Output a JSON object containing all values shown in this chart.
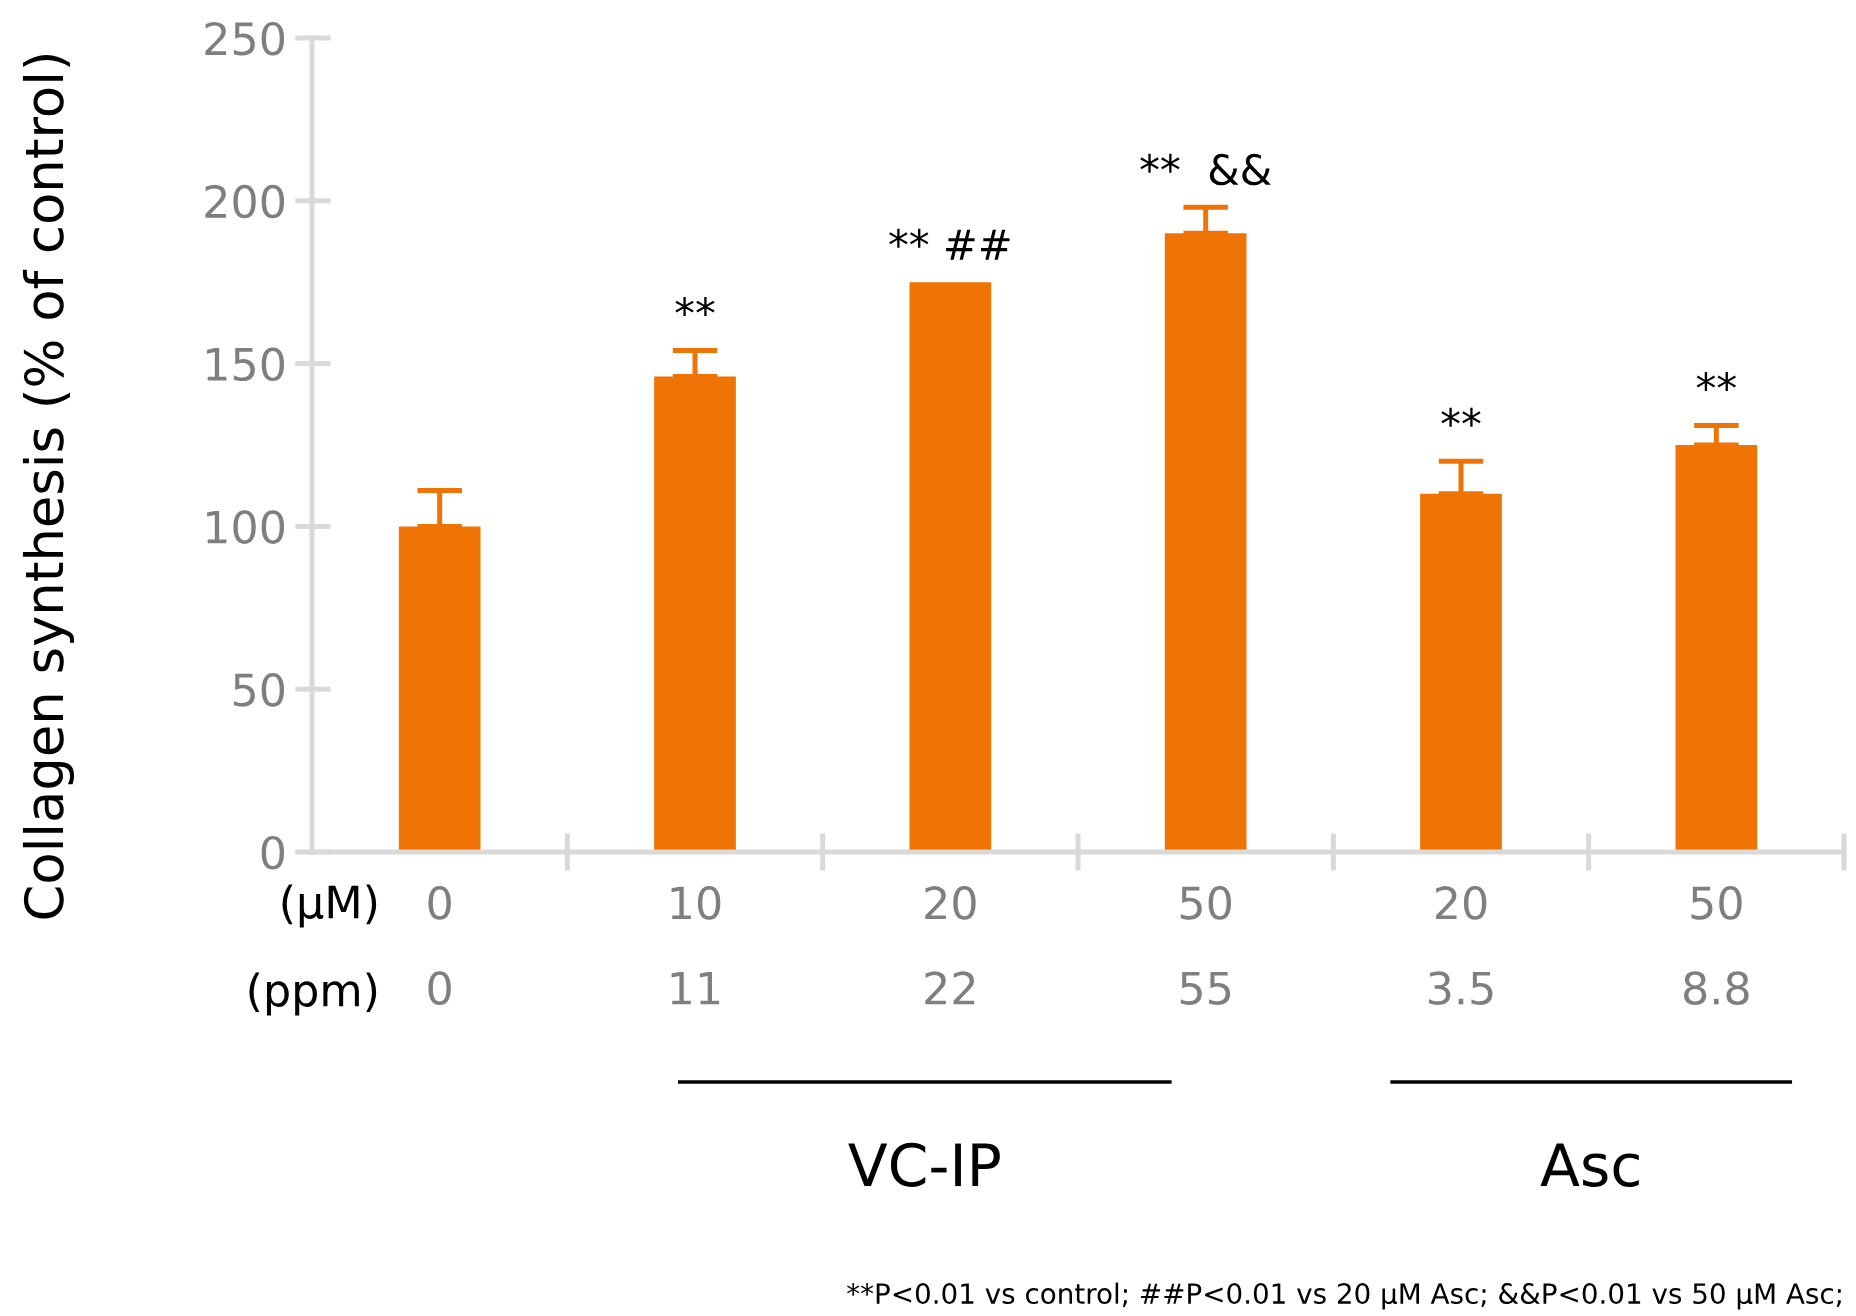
{
  "chart_data": {
    "type": "bar",
    "ylabel": "Collagen synthesis (% of control)",
    "categories": [
      "0\n0",
      "10\n11",
      "20\n22",
      "50\n55",
      "20\n3.5",
      "50\n8.8"
    ],
    "values": [
      100,
      146,
      175,
      190,
      110,
      125
    ],
    "errors": [
      [
        100,
        111
      ],
      [
        146,
        154
      ],
      null,
      [
        190,
        198
      ],
      [
        110,
        120
      ],
      [
        125,
        131
      ]
    ],
    "color": "#ef7405",
    "ylim": [
      0,
      250
    ],
    "yticks": [
      0,
      50,
      100,
      150,
      200,
      250
    ],
    "annotations": [
      {
        "text": "**",
        "x": "10\n11",
        "y": 154
      },
      {
        "text": "** ##",
        "x": "20\n22",
        "y": 175
      },
      {
        "text": "**  &&",
        "x": "50\n55",
        "y": 198
      },
      {
        "text": "**",
        "x": "20\n3.5",
        "y": 120
      },
      {
        "text": "**",
        "x": "50\n8.8",
        "y": 131
      },
      "(μM)",
      "(ppm)",
      "VC-IP",
      "Asc",
      "**P<0.01 vs control; ##P<0.01 vs 20 μM Asc; &&P<0.01 vs 50 μM Asc;"
    ]
  }
}
